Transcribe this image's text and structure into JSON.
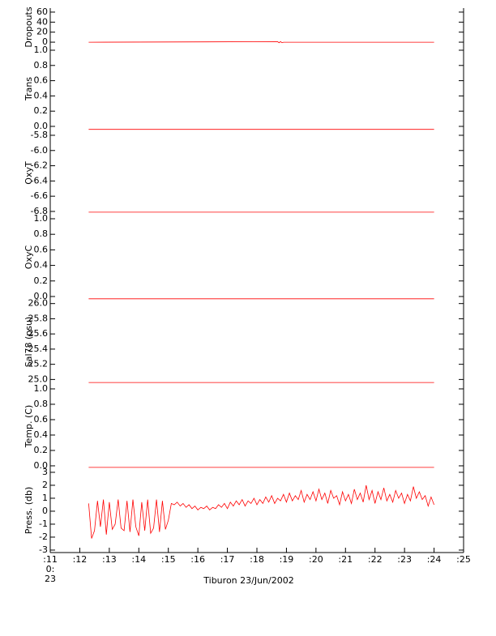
{
  "chart_data": [
    {
      "type": "line",
      "ylabel": "Dropouts",
      "color": "#ff0000",
      "ylim": [
        -8,
        68
      ],
      "yticks": [
        0,
        20,
        40,
        60
      ],
      "x": [
        12.3,
        18.7,
        18.75,
        18.8,
        18.85,
        18.9,
        24.0
      ],
      "values": [
        0,
        1,
        -1,
        1,
        -1,
        0,
        0
      ]
    },
    {
      "type": "line",
      "ylabel": "Trans",
      "color": "#ff0000",
      "ylim": [
        -0.064,
        1.053
      ],
      "yticks": [
        {
          "value": 0,
          "label": "0.0"
        },
        0.2,
        0.4,
        0.6,
        0.8,
        {
          "value": 1,
          "label": "1.0"
        }
      ],
      "x": [
        12.3,
        24.0
      ],
      "values": [
        -0.04,
        -0.04
      ]
    },
    {
      "type": "line",
      "ylabel": "OxyT",
      "color": "#ff0000",
      "ylim": [
        -6.843,
        -5.747
      ],
      "yticks": [
        -6.8,
        -6.6,
        -6.4,
        -6.2,
        {
          "value": -6,
          "label": "-6.0"
        },
        -5.8
      ],
      "x": [
        12.3,
        24.0
      ],
      "values": [
        -6.81,
        -6.81
      ]
    },
    {
      "type": "line",
      "ylabel": "OxyC",
      "color": "#ff0000",
      "ylim": [
        -0.042,
        1.052
      ],
      "yticks": [
        {
          "value": 0,
          "label": "0.0"
        },
        0.2,
        0.4,
        0.6,
        0.8,
        {
          "value": 1,
          "label": "1.0"
        }
      ],
      "x": [
        12.3,
        24.0
      ],
      "values": [
        -0.03,
        -0.03
      ]
    },
    {
      "type": "line",
      "ylabel": "Sal78 (psu)",
      "color": "#ff0000",
      "ylim": [
        24.94,
        26.05
      ],
      "yticks": [
        {
          "value": 25,
          "label": "25.0"
        },
        25.2,
        25.4,
        25.6,
        25.8,
        {
          "value": 26,
          "label": "26.0"
        }
      ],
      "x": [
        12.3,
        24.0
      ],
      "values": [
        24.96,
        24.96
      ]
    },
    {
      "type": "line",
      "ylabel": "Temp. (C)",
      "color": "#ff0000",
      "ylim": [
        -0.032,
        1.063
      ],
      "yticks": [
        {
          "value": 0,
          "label": "0.0"
        },
        0.2,
        0.4,
        0.6,
        0.8,
        {
          "value": 1,
          "label": "1.0"
        }
      ],
      "x": [
        12.3,
        24.0
      ],
      "values": [
        -0.02,
        -0.02
      ]
    },
    {
      "type": "line",
      "ylabel": "Press. (db)",
      "color": "#ff0000",
      "ylim": [
        -3.19,
        3.31
      ],
      "yticks": [
        -3,
        -2,
        -1,
        0,
        1,
        2,
        3
      ],
      "xlabel": "Tiburon 23/Jun/2002",
      "xlim": [
        11,
        25
      ],
      "xticks": [
        {
          "value": 11,
          "label": ":11"
        },
        {
          "value": 12,
          "label": ":12"
        },
        {
          "value": 13,
          "label": ":13"
        },
        {
          "value": 14,
          "label": ":14"
        },
        {
          "value": 15,
          "label": ":15"
        },
        {
          "value": 16,
          "label": ":16"
        },
        {
          "value": 17,
          "label": ":17"
        },
        {
          "value": 18,
          "label": ":18"
        },
        {
          "value": 19,
          "label": ":19"
        },
        {
          "value": 20,
          "label": ":20"
        },
        {
          "value": 21,
          "label": ":21"
        },
        {
          "value": 22,
          "label": ":22"
        },
        {
          "value": 23,
          "label": ":23"
        },
        {
          "value": 24,
          "label": ":24"
        },
        {
          "value": 25,
          "label": ":25"
        }
      ],
      "xtick_sublabels": [
        "0:",
        "23"
      ],
      "x": [
        12.3,
        12.4,
        12.5,
        12.6,
        12.7,
        12.8,
        12.9,
        13.0,
        13.1,
        13.2,
        13.3,
        13.4,
        13.5,
        13.6,
        13.7,
        13.8,
        13.9,
        14.0,
        14.1,
        14.2,
        14.3,
        14.4,
        14.5,
        14.6,
        14.7,
        14.8,
        14.9,
        15.0,
        15.1,
        15.2,
        15.3,
        15.4,
        15.5,
        15.6,
        15.7,
        15.8,
        15.9,
        16.0,
        16.1,
        16.2,
        16.3,
        16.4,
        16.5,
        16.6,
        16.7,
        16.8,
        16.9,
        17.0,
        17.1,
        17.2,
        17.3,
        17.4,
        17.5,
        17.6,
        17.7,
        17.8,
        17.9,
        18.0,
        18.1,
        18.2,
        18.3,
        18.4,
        18.5,
        18.6,
        18.7,
        18.8,
        18.9,
        19.0,
        19.1,
        19.2,
        19.3,
        19.4,
        19.5,
        19.6,
        19.7,
        19.8,
        19.9,
        20.0,
        20.1,
        20.2,
        20.3,
        20.4,
        20.5,
        20.6,
        20.7,
        20.8,
        20.9,
        21.0,
        21.1,
        21.2,
        21.3,
        21.4,
        21.5,
        21.6,
        21.7,
        21.8,
        21.9,
        22.0,
        22.1,
        22.2,
        22.3,
        22.4,
        22.5,
        22.6,
        22.7,
        22.8,
        22.9,
        23.0,
        23.1,
        23.2,
        23.3,
        23.4,
        23.5,
        23.6,
        23.7,
        23.8,
        23.9,
        24.0
      ],
      "values": [
        0.6,
        -2.1,
        -1.5,
        0.8,
        -1.2,
        0.9,
        -1.8,
        0.7,
        -1.4,
        -1.0,
        0.9,
        -1.3,
        -1.5,
        0.8,
        -1.6,
        0.9,
        -1.2,
        -1.9,
        0.7,
        -1.5,
        0.9,
        -1.7,
        -1.3,
        0.9,
        -1.6,
        0.8,
        -1.4,
        -0.7,
        0.6,
        0.5,
        0.7,
        0.4,
        0.6,
        0.3,
        0.5,
        0.2,
        0.4,
        0.1,
        0.3,
        0.2,
        0.4,
        0.1,
        0.3,
        0.2,
        0.5,
        0.3,
        0.6,
        0.2,
        0.7,
        0.4,
        0.8,
        0.5,
        0.9,
        0.4,
        0.8,
        0.6,
        1.0,
        0.5,
        0.9,
        0.6,
        1.1,
        0.7,
        1.2,
        0.6,
        1.0,
        0.8,
        1.3,
        0.7,
        1.4,
        0.8,
        1.2,
        0.9,
        1.6,
        0.7,
        1.3,
        0.9,
        1.5,
        0.8,
        1.7,
        0.9,
        1.4,
        0.6,
        1.6,
        1.0,
        1.2,
        0.5,
        1.5,
        0.8,
        1.3,
        0.6,
        1.7,
        0.9,
        1.4,
        0.7,
        2.0,
        0.9,
        1.6,
        0.6,
        1.5,
        0.9,
        1.8,
        0.8,
        1.3,
        0.7,
        1.6,
        1.0,
        1.4,
        0.6,
        1.3,
        0.8,
        1.9,
        1.0,
        1.5,
        0.9,
        1.2,
        0.4,
        1.1,
        0.5
      ]
    }
  ]
}
